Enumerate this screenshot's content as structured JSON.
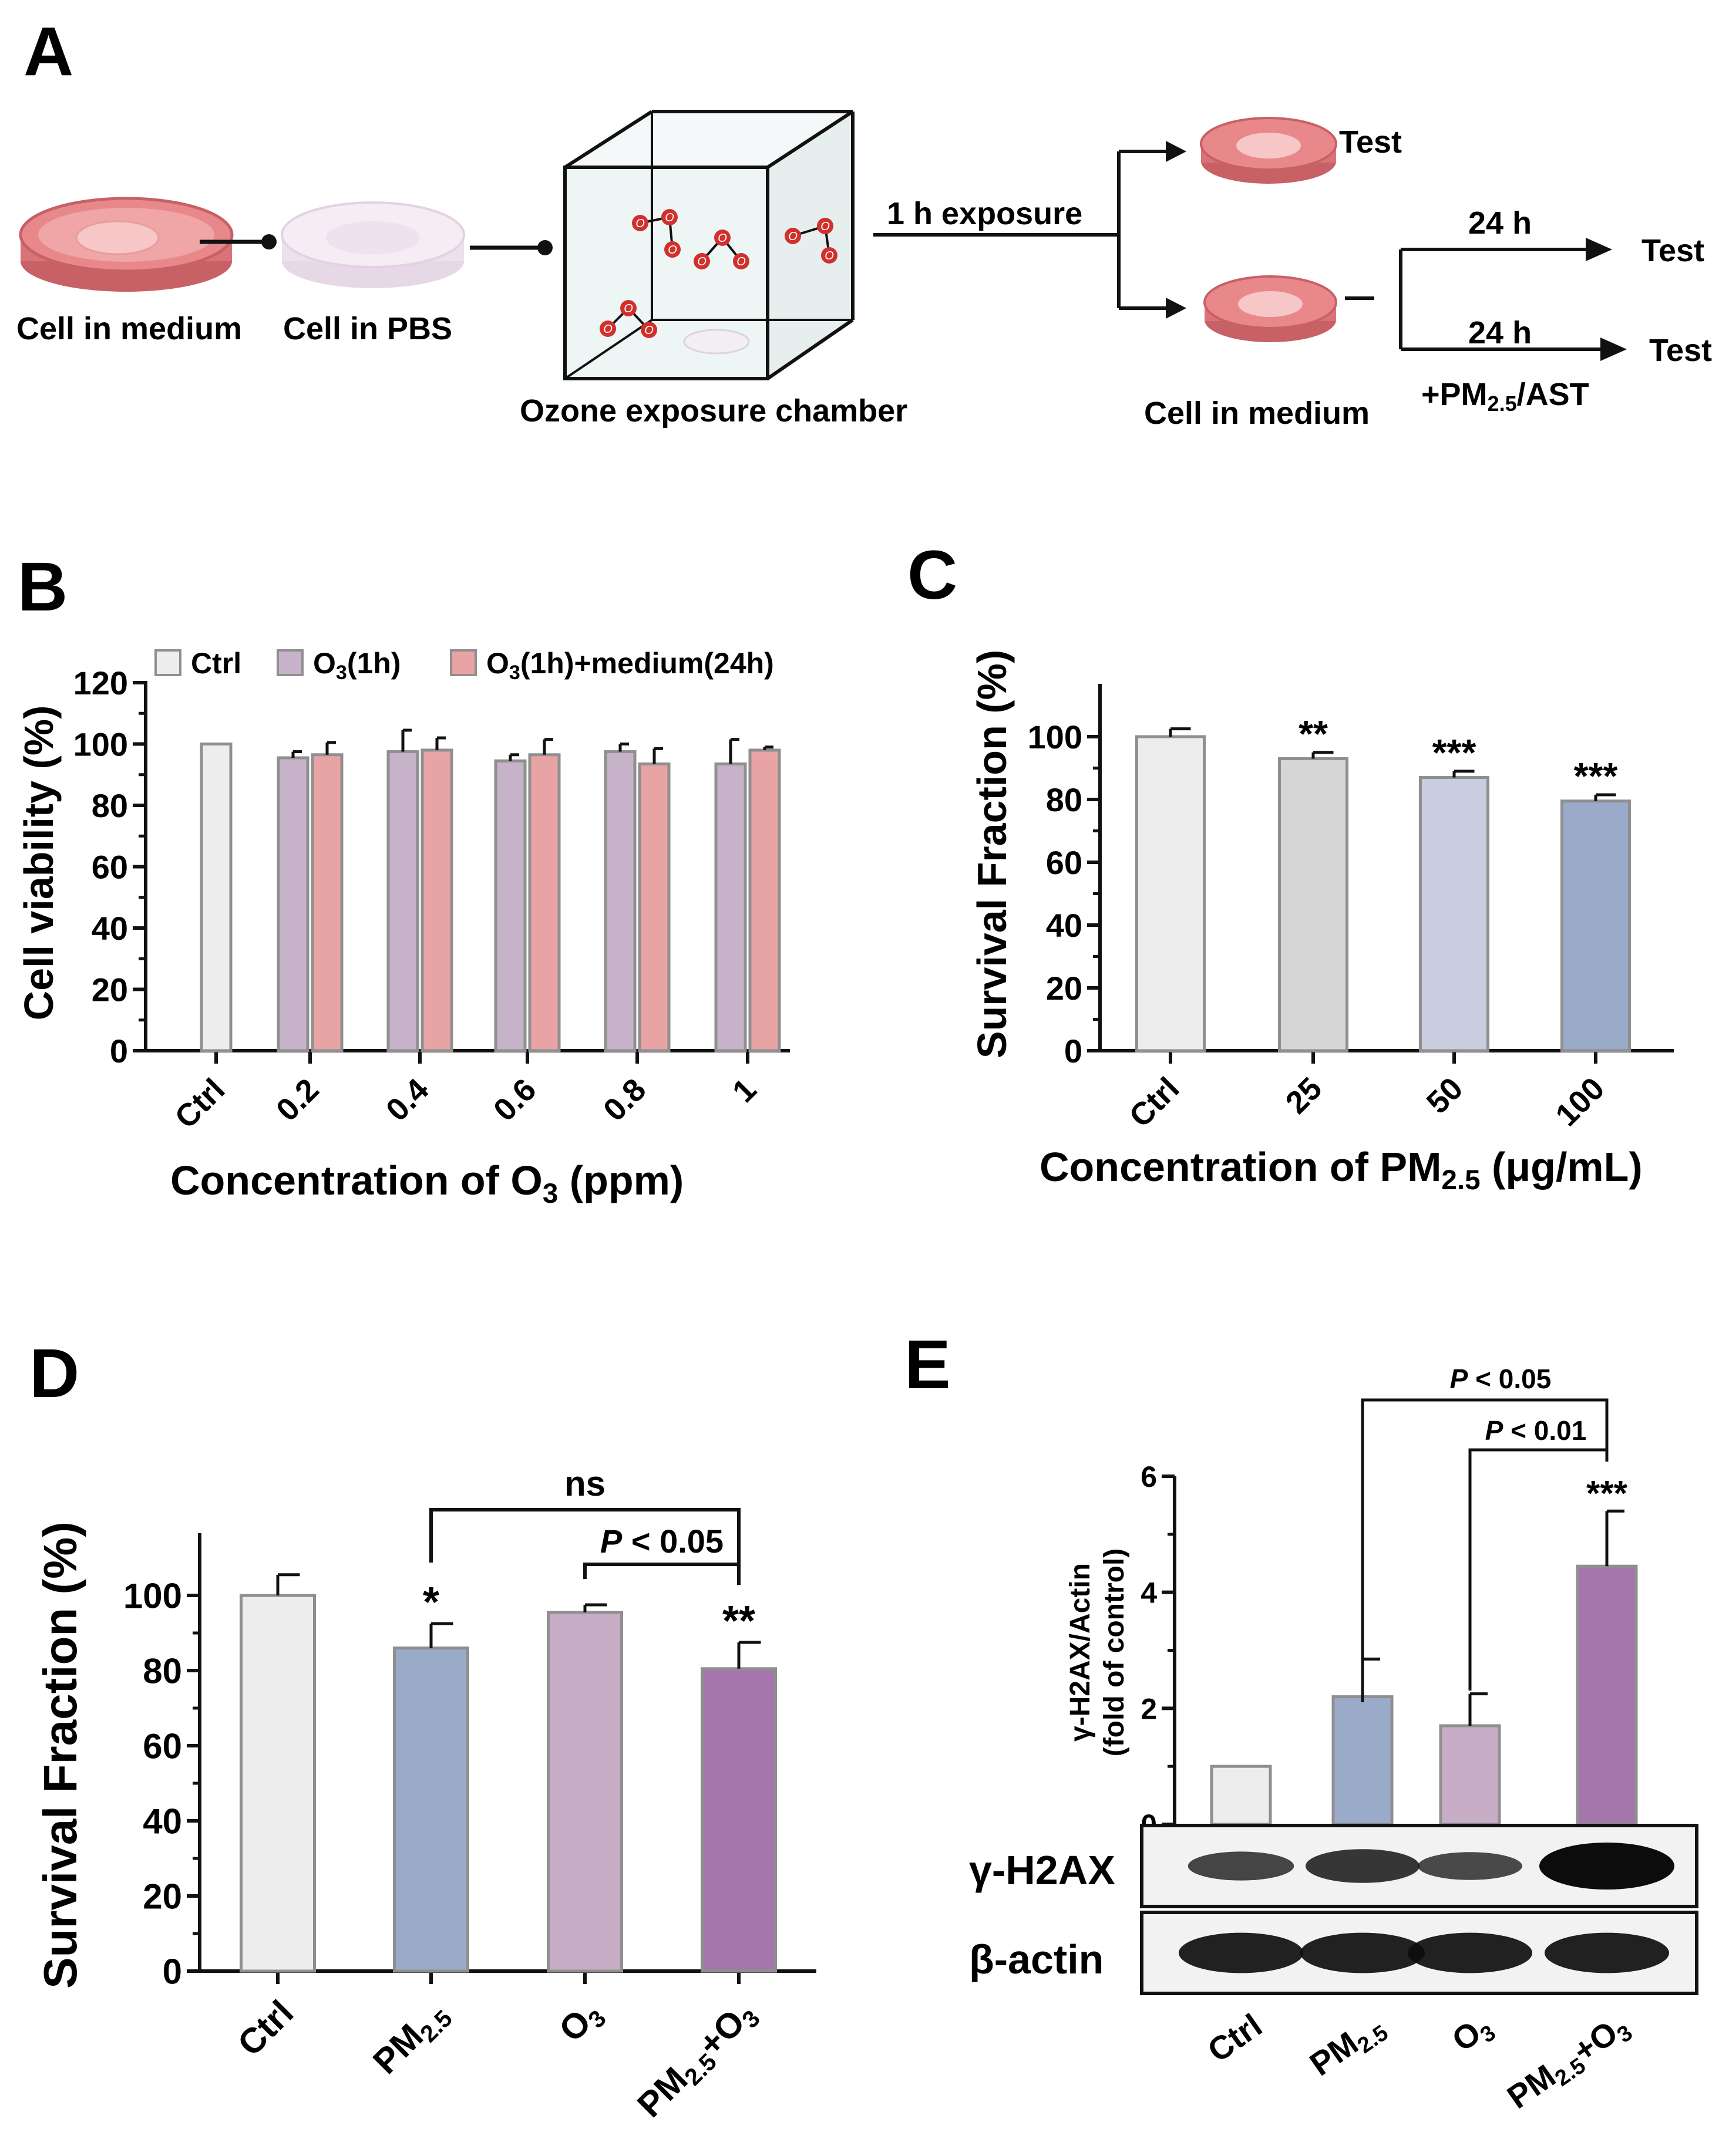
{
  "panels": {
    "A": {
      "letter": "A",
      "labels": {
        "cell_in_medium": "Cell in medium",
        "cell_in_pbs": "Cell in PBS",
        "chamber": "Ozone exposure chamber",
        "exposure": "1 h exposure",
        "test_top": "Test",
        "cell_in_medium_2": "Cell in medium",
        "h24_a": "24 h",
        "h24_b": "24 h",
        "test_a": "Test",
        "test_b": "Test",
        "pm_ast_pre": "+PM",
        "pm_ast_sub": "2.5",
        "pm_ast_post": "/AST"
      },
      "ozone_symbol": "O"
    },
    "B": {
      "letter": "B"
    },
    "C": {
      "letter": "C"
    },
    "D": {
      "letter": "D"
    },
    "E": {
      "letter": "E",
      "blot_labels": {
        "row1": "γ-H2AX",
        "row2": "β-actin"
      },
      "band_intensity_row1": [
        0.45,
        0.6,
        0.42,
        1.0
      ],
      "band_intensity_row2": [
        0.8,
        0.8,
        0.8,
        0.8
      ]
    }
  },
  "colors": {
    "dish_red": "#e8888b",
    "dish_edge": "#c76165",
    "dish_pbs": "#eee0ec",
    "ozone": "#d0312d",
    "bar_edge": "#8f8f8f",
    "ctrl": "#eeedee",
    "purple_light": "#c7b3c9",
    "pink": "#e8a3a4",
    "grey": "#d6d6d6",
    "blue_light": "#c8cde0",
    "blue": "#9aaac9",
    "mauve": "#c8adc6",
    "purple": "#a576ac"
  },
  "chart_data": [
    {
      "panel": "B",
      "type": "bar",
      "categories": [
        "Ctrl",
        "0.2",
        "0.4",
        "0.6",
        "0.8",
        "1"
      ],
      "series": [
        {
          "name": "Ctrl",
          "values": [
            100,
            null,
            null,
            null,
            null,
            null
          ],
          "errors": [
            0,
            null,
            null,
            null,
            null,
            null
          ]
        },
        {
          "name": "O3(1h)",
          "values": [
            null,
            95.5,
            97.5,
            94.5,
            97.5,
            93.5
          ],
          "errors": [
            null,
            2,
            7,
            2,
            2.5,
            8
          ]
        },
        {
          "name": "O3(1h)+medium(24h)",
          "values": [
            null,
            96.5,
            98,
            96.5,
            93.5,
            98
          ],
          "errors": [
            null,
            4,
            4,
            5,
            5,
            1
          ]
        }
      ],
      "legend": [
        {
          "pre": "Ctrl",
          "sub": "",
          "post": ""
        },
        {
          "pre": "O",
          "sub": "3",
          "post": "(1h)"
        },
        {
          "pre": "O",
          "sub": "3",
          "post": "(1h)+medium(24h)"
        }
      ],
      "ylabel": "Cell viability (%)",
      "xlabel": {
        "pre": "Concentration of O",
        "sub": "3",
        "post": " (ppm)"
      },
      "yticks": [
        0,
        20,
        40,
        60,
        80,
        100,
        120
      ],
      "ylim": [
        0,
        120
      ],
      "legend_position": "top"
    },
    {
      "panel": "C",
      "type": "bar",
      "categories": [
        "Ctrl",
        "25",
        "50",
        "100"
      ],
      "values": [
        100,
        93,
        87,
        79.5
      ],
      "errors": [
        2.5,
        2,
        2,
        2
      ],
      "significance": [
        "",
        "**",
        "***",
        "***"
      ],
      "ylabel": "Survival Fraction (%)",
      "xlabel": {
        "pre": "Concentration of PM",
        "sub": "2.5",
        "post": " (μg/mL)"
      },
      "yticks": [
        0,
        20,
        40,
        60,
        80,
        100
      ],
      "ylim": [
        0,
        115
      ]
    },
    {
      "panel": "D",
      "type": "bar",
      "categories": [
        {
          "pre": "Ctrl",
          "sub": "",
          "post": ""
        },
        {
          "pre": "PM",
          "sub": "2.5",
          "post": ""
        },
        {
          "pre": "O",
          "sub": "3",
          "post": ""
        },
        {
          "pre": "PM",
          "sub": "2.5",
          "post": "+O",
          "sub2": "3"
        }
      ],
      "values": [
        100,
        86,
        95.5,
        80.5
      ],
      "errors": [
        5.5,
        6.5,
        2,
        7
      ],
      "significance": [
        "",
        "*",
        "",
        "**"
      ],
      "comparisons": [
        {
          "from": 1,
          "to": 3,
          "label": "ns",
          "italic": false
        },
        {
          "from": 2,
          "to": 3,
          "label_italic": "P",
          "label_rest": " < 0.05",
          "italic": true
        }
      ],
      "ylabel": "Survival Fraction (%)",
      "yticks": [
        0,
        20,
        40,
        60,
        80,
        100
      ],
      "ylim": [
        0,
        115
      ]
    },
    {
      "panel": "E",
      "type": "bar",
      "categories": [
        {
          "pre": "Ctrl",
          "sub": "",
          "post": ""
        },
        {
          "pre": "PM",
          "sub": "2.5",
          "post": ""
        },
        {
          "pre": "O",
          "sub": "3",
          "post": ""
        },
        {
          "pre": "PM",
          "sub": "2.5",
          "post": "+O",
          "sub2": "3"
        }
      ],
      "values": [
        1.0,
        2.2,
        1.7,
        4.45
      ],
      "errors": [
        0,
        0.65,
        0.55,
        0.95
      ],
      "significance": [
        "",
        "",
        "",
        "***"
      ],
      "comparisons": [
        {
          "from": 1,
          "to": 3,
          "label_italic": "P",
          "label_rest": " < 0.05"
        },
        {
          "from": 2,
          "to": 3,
          "label_italic": "P",
          "label_rest": " < 0.01"
        }
      ],
      "ylabel_line1": "γ-H2AX/Actin",
      "ylabel_line2": "(fold of control)",
      "yticks": [
        0,
        2,
        4,
        6
      ],
      "ylim": [
        0,
        6
      ]
    }
  ]
}
